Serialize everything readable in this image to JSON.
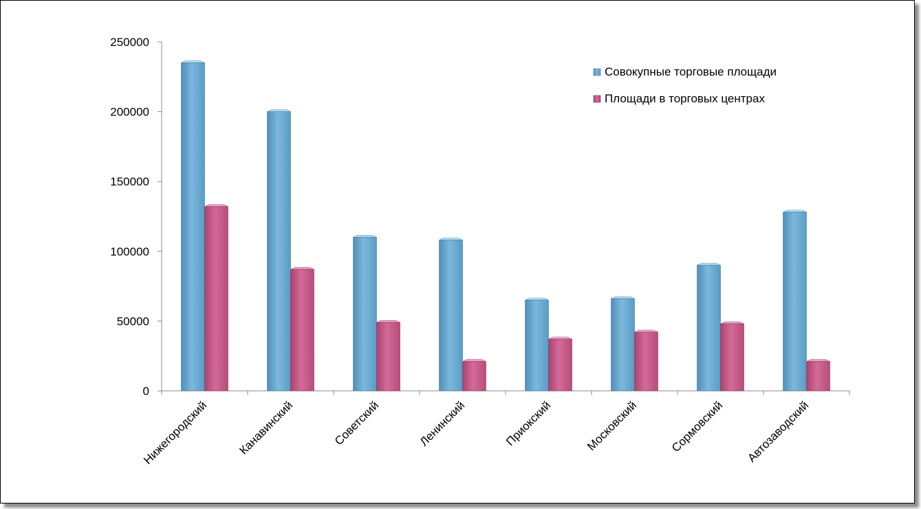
{
  "chart_data": {
    "type": "bar",
    "title": "",
    "xlabel": "",
    "ylabel": "",
    "ylim": [
      0,
      250000
    ],
    "yticks": [
      "0",
      "50000",
      "100000",
      "150000",
      "200000",
      "250000"
    ],
    "categories": [
      "Нижегородский",
      "Канавинский",
      "Советский",
      "Ленинский",
      "Приокский",
      "Московский",
      "Сормовский",
      "Автозаводский"
    ],
    "series": [
      {
        "name": "Совокупные торговые площади",
        "color": "#6aa8d0",
        "values": [
          235000,
          200000,
          110000,
          108000,
          65000,
          66000,
          90000,
          128000
        ]
      },
      {
        "name": "Площади в торговых центрах",
        "color": "#c85a8a",
        "values": [
          132000,
          87000,
          49000,
          21000,
          37000,
          42000,
          48000,
          21000
        ]
      }
    ],
    "legend_position": "top-right",
    "grid": false
  }
}
